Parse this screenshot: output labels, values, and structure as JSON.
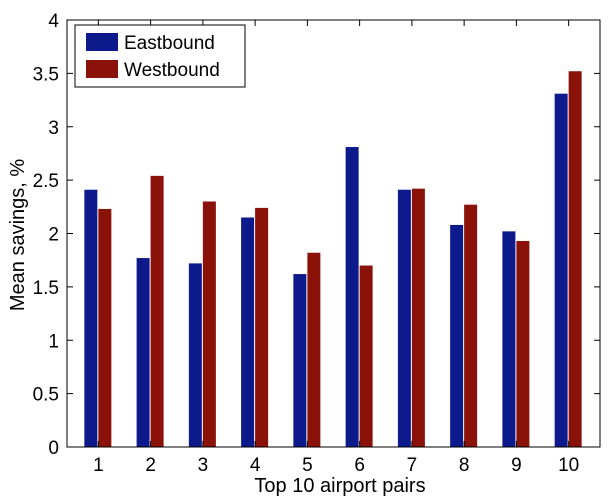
{
  "chart_data": {
    "type": "bar",
    "title": "",
    "xlabel": "Top 10 airport pairs",
    "ylabel": "Mean savings, %",
    "categories": [
      "1",
      "2",
      "3",
      "4",
      "5",
      "6",
      "7",
      "8",
      "9",
      "10"
    ],
    "series": [
      {
        "name": "Eastbound",
        "color": "#0c1a8c",
        "values": [
          2.41,
          1.77,
          1.72,
          2.15,
          1.62,
          2.81,
          2.41,
          2.08,
          2.02,
          3.31
        ]
      },
      {
        "name": "Westbound",
        "color": "#8a1208",
        "values": [
          2.23,
          2.54,
          2.3,
          2.24,
          1.82,
          1.7,
          2.42,
          2.27,
          1.93,
          3.52
        ]
      }
    ],
    "ylim": [
      0,
      4
    ],
    "yticks": [
      {
        "value": 0,
        "label": "0"
      },
      {
        "value": 0.5,
        "label": "0.5"
      },
      {
        "value": 1,
        "label": "1"
      },
      {
        "value": 1.5,
        "label": "1.5"
      },
      {
        "value": 2,
        "label": "2"
      },
      {
        "value": 2.5,
        "label": "2.5"
      },
      {
        "value": 3,
        "label": "3"
      },
      {
        "value": 3.5,
        "label": "3.5"
      },
      {
        "value": 4,
        "label": "4"
      }
    ],
    "grid": false,
    "legend_position": "top-left"
  }
}
